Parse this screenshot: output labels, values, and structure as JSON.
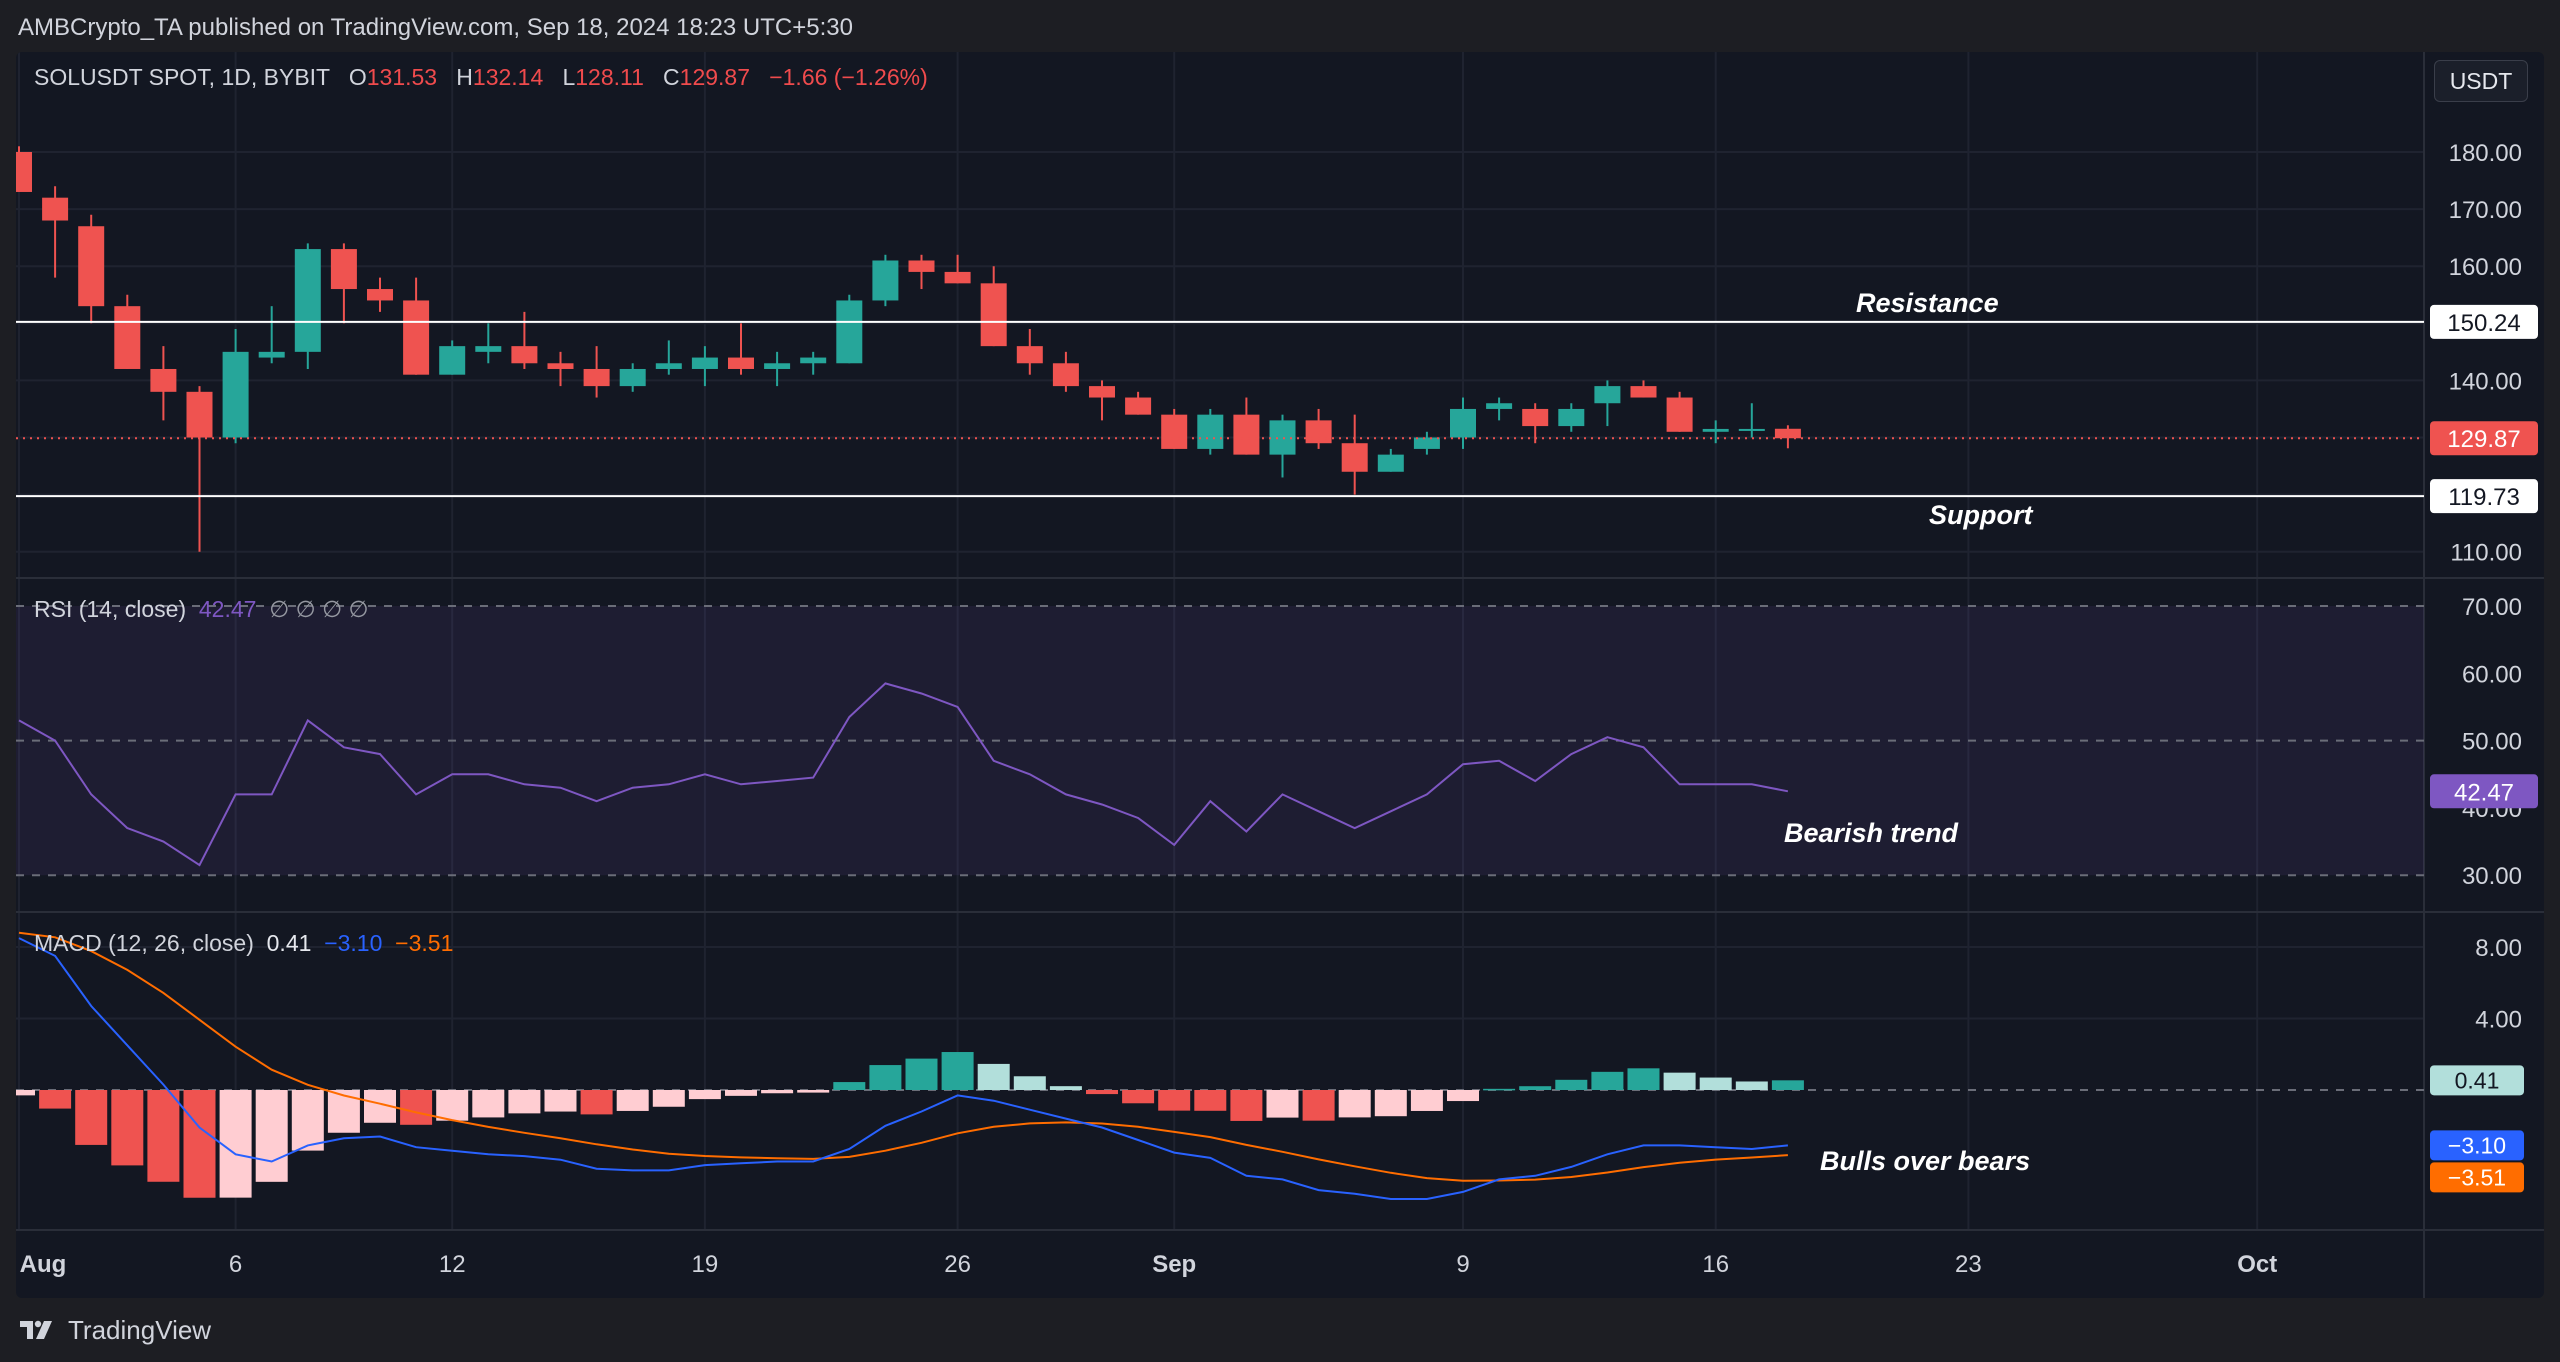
{
  "header": {
    "publisher": "AMBCrypto_TA published on TradingView.com, Sep 18, 2024 18:23 UTC+5:30"
  },
  "symbol": {
    "name": "SOLUSDT SPOT, 1D, BYBIT",
    "open_label": "O",
    "open": "131.53",
    "high_label": "H",
    "high": "132.14",
    "low_label": "L",
    "low": "128.11",
    "close_label": "C",
    "close": "129.87",
    "change": "−1.66 (−1.26%)"
  },
  "currency": "USDT",
  "rsi_legend": {
    "name": "RSI (14, close)",
    "value": "42.47",
    "extras": "∅ ∅ ∅ ∅"
  },
  "macd_legend": {
    "name": "MACD (12, 26, close)",
    "hist": "0.41",
    "macd": "−3.10",
    "signal": "−3.51"
  },
  "brand": "TradingView",
  "colors": {
    "up": "#26a69a",
    "down": "#ef5350",
    "rsi": "#7e57c2",
    "macd": "#2962ff",
    "signal": "#ff6d00",
    "hist_pos_light": "#b2dfdb",
    "hist_neg_light": "#ffcdd2"
  },
  "chart_data": [
    {
      "type": "candlestick",
      "x_tick_labels": [
        "Aug",
        "6",
        "12",
        "19",
        "26",
        "Sep",
        "9",
        "16",
        "23",
        "Oct"
      ],
      "y_tick_labels": [
        "180.00",
        "170.00",
        "160.00",
        "150.00",
        "140.00",
        "130.00",
        "120.00",
        "110.00"
      ],
      "ylim": [
        105,
        183
      ],
      "price_labels": {
        "resistance": "150.24",
        "last": "129.87",
        "support": "119.73"
      },
      "annotations": {
        "resistance": "Resistance",
        "support": "Support"
      },
      "horizontal_lines": {
        "resistance": 150.24,
        "support": 119.73,
        "last": 129.87
      },
      "candles": [
        {
          "date": "Jul 31",
          "o": 180,
          "h": 181,
          "l": 173,
          "c": 173
        },
        {
          "date": "Aug 1",
          "o": 172,
          "h": 174,
          "l": 158,
          "c": 168
        },
        {
          "date": "Aug 2",
          "o": 167,
          "h": 169,
          "l": 150,
          "c": 153
        },
        {
          "date": "Aug 3",
          "o": 153,
          "h": 155,
          "l": 142,
          "c": 142
        },
        {
          "date": "Aug 4",
          "o": 142,
          "h": 146,
          "l": 133,
          "c": 138
        },
        {
          "date": "Aug 5",
          "o": 138,
          "h": 139,
          "l": 110,
          "c": 130
        },
        {
          "date": "Aug 6",
          "o": 130,
          "h": 149,
          "l": 129,
          "c": 145
        },
        {
          "date": "Aug 7",
          "o": 144,
          "h": 153,
          "l": 143,
          "c": 145
        },
        {
          "date": "Aug 8",
          "o": 145,
          "h": 164,
          "l": 142,
          "c": 163
        },
        {
          "date": "Aug 9",
          "o": 163,
          "h": 164,
          "l": 150,
          "c": 156
        },
        {
          "date": "Aug 10",
          "o": 156,
          "h": 158,
          "l": 152,
          "c": 154
        },
        {
          "date": "Aug 11",
          "o": 154,
          "h": 158,
          "l": 141,
          "c": 141
        },
        {
          "date": "Aug 12",
          "o": 141,
          "h": 147,
          "l": 141,
          "c": 146
        },
        {
          "date": "Aug 13",
          "o": 145,
          "h": 150,
          "l": 143,
          "c": 146
        },
        {
          "date": "Aug 14",
          "o": 146,
          "h": 152,
          "l": 142,
          "c": 143
        },
        {
          "date": "Aug 15",
          "o": 143,
          "h": 145,
          "l": 139,
          "c": 142
        },
        {
          "date": "Aug 16",
          "o": 142,
          "h": 146,
          "l": 137,
          "c": 139
        },
        {
          "date": "Aug 17",
          "o": 139,
          "h": 143,
          "l": 138,
          "c": 142
        },
        {
          "date": "Aug 18",
          "o": 142,
          "h": 147,
          "l": 141,
          "c": 143
        },
        {
          "date": "Aug 19",
          "o": 142,
          "h": 146,
          "l": 139,
          "c": 144
        },
        {
          "date": "Aug 20",
          "o": 144,
          "h": 150,
          "l": 141,
          "c": 142
        },
        {
          "date": "Aug 21",
          "o": 142,
          "h": 145,
          "l": 139,
          "c": 143
        },
        {
          "date": "Aug 22",
          "o": 143,
          "h": 145,
          "l": 141,
          "c": 144
        },
        {
          "date": "Aug 23",
          "o": 143,
          "h": 155,
          "l": 143,
          "c": 154
        },
        {
          "date": "Aug 24",
          "o": 154,
          "h": 162,
          "l": 153,
          "c": 161
        },
        {
          "date": "Aug 25",
          "o": 161,
          "h": 162,
          "l": 156,
          "c": 159
        },
        {
          "date": "Aug 26",
          "o": 159,
          "h": 162,
          "l": 157,
          "c": 157
        },
        {
          "date": "Aug 27",
          "o": 157,
          "h": 160,
          "l": 146,
          "c": 146
        },
        {
          "date": "Aug 28",
          "o": 146,
          "h": 149,
          "l": 141,
          "c": 143
        },
        {
          "date": "Aug 29",
          "o": 143,
          "h": 145,
          "l": 138,
          "c": 139
        },
        {
          "date": "Aug 30",
          "o": 139,
          "h": 140,
          "l": 133,
          "c": 137
        },
        {
          "date": "Aug 31",
          "o": 137,
          "h": 138,
          "l": 134,
          "c": 134
        },
        {
          "date": "Sep 1",
          "o": 134,
          "h": 135,
          "l": 128,
          "c": 128
        },
        {
          "date": "Sep 2",
          "o": 128,
          "h": 135,
          "l": 127,
          "c": 134
        },
        {
          "date": "Sep 3",
          "o": 134,
          "h": 137,
          "l": 127,
          "c": 127
        },
        {
          "date": "Sep 4",
          "o": 127,
          "h": 134,
          "l": 123,
          "c": 133
        },
        {
          "date": "Sep 5",
          "o": 133,
          "h": 135,
          "l": 128,
          "c": 129
        },
        {
          "date": "Sep 6",
          "o": 129,
          "h": 134,
          "l": 120,
          "c": 124
        },
        {
          "date": "Sep 7",
          "o": 124,
          "h": 128,
          "l": 124,
          "c": 127
        },
        {
          "date": "Sep 8",
          "o": 128,
          "h": 131,
          "l": 127,
          "c": 130
        },
        {
          "date": "Sep 9",
          "o": 130,
          "h": 137,
          "l": 128,
          "c": 135
        },
        {
          "date": "Sep 10",
          "o": 135,
          "h": 137,
          "l": 133,
          "c": 136
        },
        {
          "date": "Sep 11",
          "o": 135,
          "h": 136,
          "l": 129,
          "c": 132
        },
        {
          "date": "Sep 12",
          "o": 132,
          "h": 136,
          "l": 131,
          "c": 135
        },
        {
          "date": "Sep 13",
          "o": 136,
          "h": 140,
          "l": 132,
          "c": 139
        },
        {
          "date": "Sep 14",
          "o": 139,
          "h": 140,
          "l": 137,
          "c": 137
        },
        {
          "date": "Sep 15",
          "o": 137,
          "h": 138,
          "l": 131,
          "c": 131
        },
        {
          "date": "Sep 16",
          "o": 131,
          "h": 133,
          "l": 129,
          "c": 131.5
        },
        {
          "date": "Sep 17",
          "o": 131.3,
          "h": 136,
          "l": 130,
          "c": 131.5
        },
        {
          "date": "Sep 18",
          "o": 131.53,
          "h": 132.14,
          "l": 128.11,
          "c": 129.87
        }
      ]
    },
    {
      "type": "line",
      "title": "RSI (14, close)",
      "y_tick_labels": [
        "70.00",
        "60.00",
        "50.00",
        "40.00",
        "30.00"
      ],
      "ylim": [
        26,
        72
      ],
      "band": [
        30,
        70
      ],
      "midline": 50,
      "last_value_label": "42.47",
      "annotation": "Bearish trend",
      "values": [
        53,
        50,
        42,
        37,
        35,
        31.5,
        42,
        42,
        53,
        49,
        48,
        42,
        45,
        45,
        43.5,
        43,
        41,
        43,
        43.5,
        45,
        43.5,
        44,
        44.5,
        53.5,
        58.5,
        57,
        55,
        47,
        45,
        42,
        40.5,
        38.5,
        34.5,
        41,
        36.5,
        42,
        39.5,
        37,
        39.5,
        42,
        46.5,
        47,
        44,
        48,
        50.5,
        49,
        43.5,
        43.5,
        43.5,
        42.47
      ]
    },
    {
      "type": "line",
      "title": "MACD (12, 26, close)",
      "y_tick_labels": [
        "8.00",
        "4.00"
      ],
      "ylim": [
        -6.4,
        9.5
      ],
      "hist_value_label": "0.41",
      "macd_value_label": "−3.10",
      "signal_value_label": "−3.51",
      "annotation": "Bulls over bears",
      "macd": [
        8.5,
        7.5,
        4.7,
        2.5,
        0.3,
        -2.1,
        -3.6,
        -4,
        -3.1,
        -2.7,
        -2.6,
        -3.2,
        -3.4,
        -3.6,
        -3.7,
        -3.9,
        -4.4,
        -4.5,
        -4.5,
        -4.2,
        -4.1,
        -4,
        -4,
        -3.3,
        -2,
        -1.2,
        -0.3,
        -0.6,
        -1.1,
        -1.6,
        -2.1,
        -2.8,
        -3.5,
        -3.8,
        -4.8,
        -5,
        -5.6,
        -5.8,
        -6.1,
        -6.1,
        -5.7,
        -5,
        -4.8,
        -4.3,
        -3.6,
        -3.1,
        -3.1,
        -3.2,
        -3.3,
        -3.1
      ]
    }
  ]
}
